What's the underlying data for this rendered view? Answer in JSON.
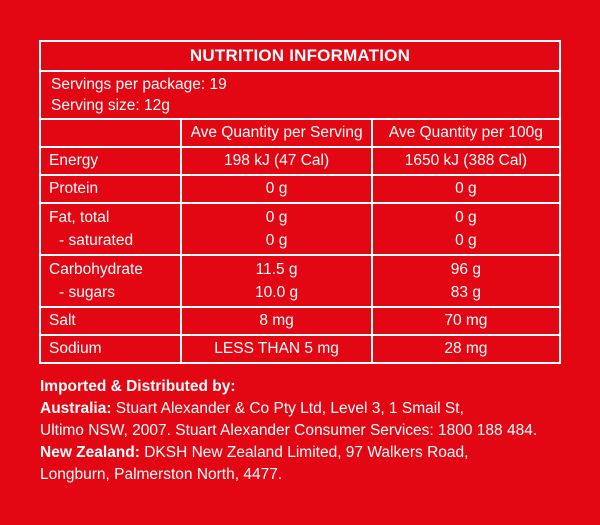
{
  "title": "NUTRITION INFORMATION",
  "servings_per_package": "Servings per package: 19",
  "serving_size": "Serving size: 12g",
  "headers": {
    "col1": "",
    "col2": "Ave Quantity per Serving",
    "col3": "Ave Quantity per 100g"
  },
  "rows": {
    "energy": {
      "label": "Energy",
      "per_serving": "198 kJ (47 Cal)",
      "per_100g": "1650 kJ (388 Cal)"
    },
    "protein": {
      "label": "Protein",
      "per_serving": "0 g",
      "per_100g": "0 g"
    },
    "fat_total": {
      "label": "Fat, total",
      "per_serving": "0 g",
      "per_100g": "0 g"
    },
    "saturated": {
      "label": "- saturated",
      "per_serving": "0 g",
      "per_100g": "0 g"
    },
    "carbohydrate": {
      "label": "Carbohydrate",
      "per_serving": "11.5 g",
      "per_100g": "96 g"
    },
    "sugars": {
      "label": "- sugars",
      "per_serving": "10.0 g",
      "per_100g": "83 g"
    },
    "salt": {
      "label": "Salt",
      "per_serving": "8 mg",
      "per_100g": "70 mg"
    },
    "sodium": {
      "label": "Sodium",
      "per_serving": "LESS THAN 5 mg",
      "per_100g": "28 mg"
    }
  },
  "importer": {
    "heading": "Imported & Distributed by:",
    "australia_label": "Australia:",
    "australia_line1": " Stuart Alexander & Co Pty Ltd, Level 3, 1 Smail St,",
    "australia_line2": "Ultimo NSW, 2007. Stuart Alexander Consumer Services: 1800 188 484.",
    "nz_label": "New Zealand:",
    "nz_line1": " DKSH New Zealand Limited, 97 Walkers Road,",
    "nz_line2": "Longburn, Palmerston North, 4477."
  },
  "colors": {
    "background": "#e30613",
    "text": "#ffffff",
    "border": "#ffffff"
  }
}
